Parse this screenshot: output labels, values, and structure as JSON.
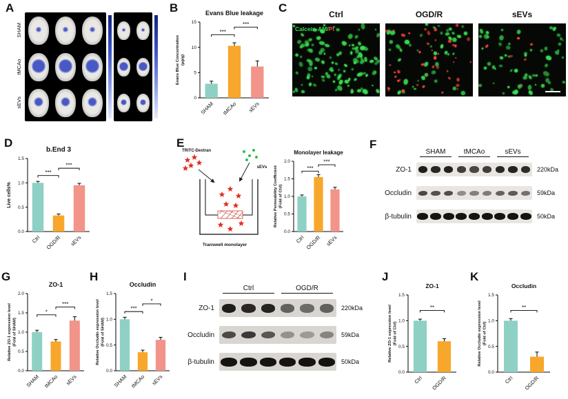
{
  "palette": {
    "teal": "#8ed1c4",
    "orange": "#f7a72c",
    "salmon": "#f2948a",
    "green_cell": "#3bdc51",
    "red_cell": "#ff4438",
    "evans_blue": "#3f51c4"
  },
  "panels": {
    "a": {
      "letter": "A",
      "row_labels": [
        "SHAM",
        "tMCAo",
        "sEVs"
      ]
    },
    "b": {
      "letter": "B"
    },
    "c": {
      "letter": "C",
      "image_labels": [
        "Ctrl",
        "OGD/R",
        "sEVs"
      ],
      "stain_green": "Calcein-AM",
      "stain_slash": "/",
      "stain_red": "PI",
      "cells": [
        {
          "green": 115,
          "red": 0
        },
        {
          "green": 45,
          "red": 42
        },
        {
          "green": 60,
          "red": 6
        }
      ]
    },
    "d": {
      "letter": "D"
    },
    "e": {
      "letter": "E",
      "tritc_label": "TRITC-Dextran",
      "sevs_label": "sEVs",
      "caption": "Transwell monolayer"
    },
    "f": {
      "letter": "F"
    },
    "g": {
      "letter": "G"
    },
    "h": {
      "letter": "H"
    },
    "i": {
      "letter": "I"
    },
    "j": {
      "letter": "J"
    },
    "k": {
      "letter": "K"
    }
  },
  "blots": [
    {
      "panel": "F",
      "groups": [
        {
          "name": "SHAM",
          "lanes": 3
        },
        {
          "name": "tMCAo",
          "lanes": 3
        },
        {
          "name": "sEVs",
          "lanes": 3
        }
      ],
      "rows": [
        {
          "protein": "ZO-1",
          "kda": "220kDa",
          "intensities": [
            0.95,
            0.9,
            0.93,
            0.8,
            0.75,
            0.8,
            0.9,
            0.92,
            0.88
          ]
        },
        {
          "protein": "Occludin",
          "kda": "59kDa",
          "intensities": [
            0.75,
            0.7,
            0.72,
            0.42,
            0.48,
            0.5,
            0.62,
            0.66,
            0.55
          ]
        },
        {
          "protein": "β-tubulin",
          "kda": "50kDa",
          "intensities": [
            1,
            1,
            1,
            1,
            1,
            1,
            1,
            1,
            1
          ]
        }
      ]
    },
    {
      "panel": "I",
      "groups": [
        {
          "name": "Ctrl",
          "lanes": 3
        },
        {
          "name": "OGD/R",
          "lanes": 3
        }
      ],
      "rows": [
        {
          "protein": "ZO-1",
          "kda": "220kDa",
          "intensities": [
            0.95,
            0.9,
            0.92,
            0.6,
            0.55,
            0.6
          ]
        },
        {
          "protein": "Occludin",
          "kda": "59kDa",
          "intensities": [
            0.72,
            0.8,
            0.65,
            0.35,
            0.3,
            0.42
          ]
        },
        {
          "protein": "β-tubulin",
          "kda": "50kDa",
          "intensities": [
            1,
            1,
            1,
            1,
            1,
            1
          ]
        }
      ]
    }
  ],
  "chart_data": [
    {
      "panel": "B",
      "type": "bar",
      "title": "Evans Blue leakage",
      "ylabel_lines": [
        "Evans Blue Concentration",
        "(μg/g)"
      ],
      "categories": [
        "SHAM",
        "tMCAo",
        "sEVs"
      ],
      "values": [
        2.8,
        10.3,
        6.2
      ],
      "errors": [
        0.5,
        0.6,
        1.1
      ],
      "ylim": [
        0,
        15
      ],
      "yticks": [
        "0",
        "5",
        "10",
        "15"
      ],
      "colors": [
        "teal",
        "orange",
        "salmon"
      ],
      "sig": [
        {
          "a": 0,
          "b": 1,
          "y": 12.5,
          "label": "***"
        },
        {
          "a": 1,
          "b": 2,
          "y": 14.0,
          "label": "***"
        }
      ]
    },
    {
      "panel": "D",
      "type": "bar",
      "title": "b.End 3",
      "ylabel_lines": [
        "Live cells%"
      ],
      "categories": [
        "Ctrl",
        "OGD/R",
        "sEVs"
      ],
      "values": [
        1.0,
        0.33,
        0.95
      ],
      "errors": [
        0.03,
        0.03,
        0.04
      ],
      "ylim": [
        0,
        1.5
      ],
      "yticks": [
        "0.0",
        "0.5",
        "1.0",
        "1.5"
      ],
      "colors": [
        "teal",
        "orange",
        "salmon"
      ],
      "sig": [
        {
          "a": 0,
          "b": 1,
          "y": 1.15,
          "label": "***"
        },
        {
          "a": 1,
          "b": 2,
          "y": 1.3,
          "label": "***"
        }
      ]
    },
    {
      "panel": "E",
      "type": "bar",
      "title": "Monolayer leakage",
      "ylabel_lines": [
        "Relative Permeability Coefficient",
        "(Fold of Ctrl)"
      ],
      "categories": [
        "Ctrl",
        "OGD/R",
        "sEVs"
      ],
      "values": [
        1.0,
        1.55,
        1.2
      ],
      "errors": [
        0.04,
        0.07,
        0.06
      ],
      "ylim": [
        0,
        2.0
      ],
      "yticks": [
        "0.0",
        "0.5",
        "1.0",
        "1.5",
        "2.0"
      ],
      "colors": [
        "teal",
        "orange",
        "salmon"
      ],
      "sig": [
        {
          "a": 0,
          "b": 1,
          "y": 1.72,
          "label": "***"
        },
        {
          "a": 1,
          "b": 2,
          "y": 1.9,
          "label": "***"
        }
      ]
    },
    {
      "panel": "G",
      "type": "bar",
      "title": "ZO-1",
      "ylabel_lines": [
        "Relative ZO-1 expression level",
        "(Fold of SHAM)"
      ],
      "categories": [
        "SHAM",
        "tMCAo",
        "sEVs"
      ],
      "values": [
        1.0,
        0.76,
        1.3
      ],
      "errors": [
        0.05,
        0.05,
        0.1
      ],
      "ylim": [
        0,
        2.0
      ],
      "yticks": [
        "0.0",
        "0.5",
        "1.0",
        "1.5",
        "2.0"
      ],
      "colors": [
        "teal",
        "orange",
        "salmon"
      ],
      "sig": [
        {
          "a": 0,
          "b": 1,
          "y": 1.45,
          "label": "*"
        },
        {
          "a": 1,
          "b": 2,
          "y": 1.65,
          "label": "***"
        }
      ]
    },
    {
      "panel": "H",
      "type": "bar",
      "title": "Occludin",
      "ylabel_lines": [
        "Relative Occludin expression level",
        "(Fold of SHAM)"
      ],
      "categories": [
        "SHAM",
        "tMCAo",
        "sEVs"
      ],
      "values": [
        1.0,
        0.36,
        0.6
      ],
      "errors": [
        0.04,
        0.04,
        0.05
      ],
      "ylim": [
        0,
        1.5
      ],
      "yticks": [
        "0.0",
        "0.5",
        "1.0",
        "1.5"
      ],
      "colors": [
        "teal",
        "orange",
        "salmon"
      ],
      "sig": [
        {
          "a": 0,
          "b": 1,
          "y": 1.15,
          "label": "***"
        },
        {
          "a": 1,
          "b": 2,
          "y": 1.3,
          "label": "*"
        }
      ]
    },
    {
      "panel": "J",
      "type": "bar",
      "title": "ZO-1",
      "ylabel_lines": [
        "Relative ZO-1 expression level",
        "(Fold of Ctrl)"
      ],
      "categories": [
        "Ctrl",
        "OGD/R"
      ],
      "values": [
        1.0,
        0.6
      ],
      "errors": [
        0.03,
        0.05
      ],
      "ylim": [
        0,
        1.5
      ],
      "yticks": [
        "0.0",
        "0.5",
        "1.0",
        "1.5"
      ],
      "colors": [
        "teal",
        "orange"
      ],
      "sig": [
        {
          "a": 0,
          "b": 1,
          "y": 1.2,
          "label": "**"
        }
      ]
    },
    {
      "panel": "K",
      "type": "bar",
      "title": "Occludin",
      "ylabel_lines": [
        "Relative Occludin expression level",
        "(Fold of Ctrl)"
      ],
      "categories": [
        "Ctrl",
        "OGD/R"
      ],
      "values": [
        1.0,
        0.3
      ],
      "errors": [
        0.04,
        0.09
      ],
      "ylim": [
        0,
        1.5
      ],
      "yticks": [
        "0.0",
        "0.5",
        "1.0",
        "1.5"
      ],
      "colors": [
        "teal",
        "orange"
      ],
      "sig": [
        {
          "a": 0,
          "b": 1,
          "y": 1.2,
          "label": "**"
        }
      ]
    }
  ]
}
